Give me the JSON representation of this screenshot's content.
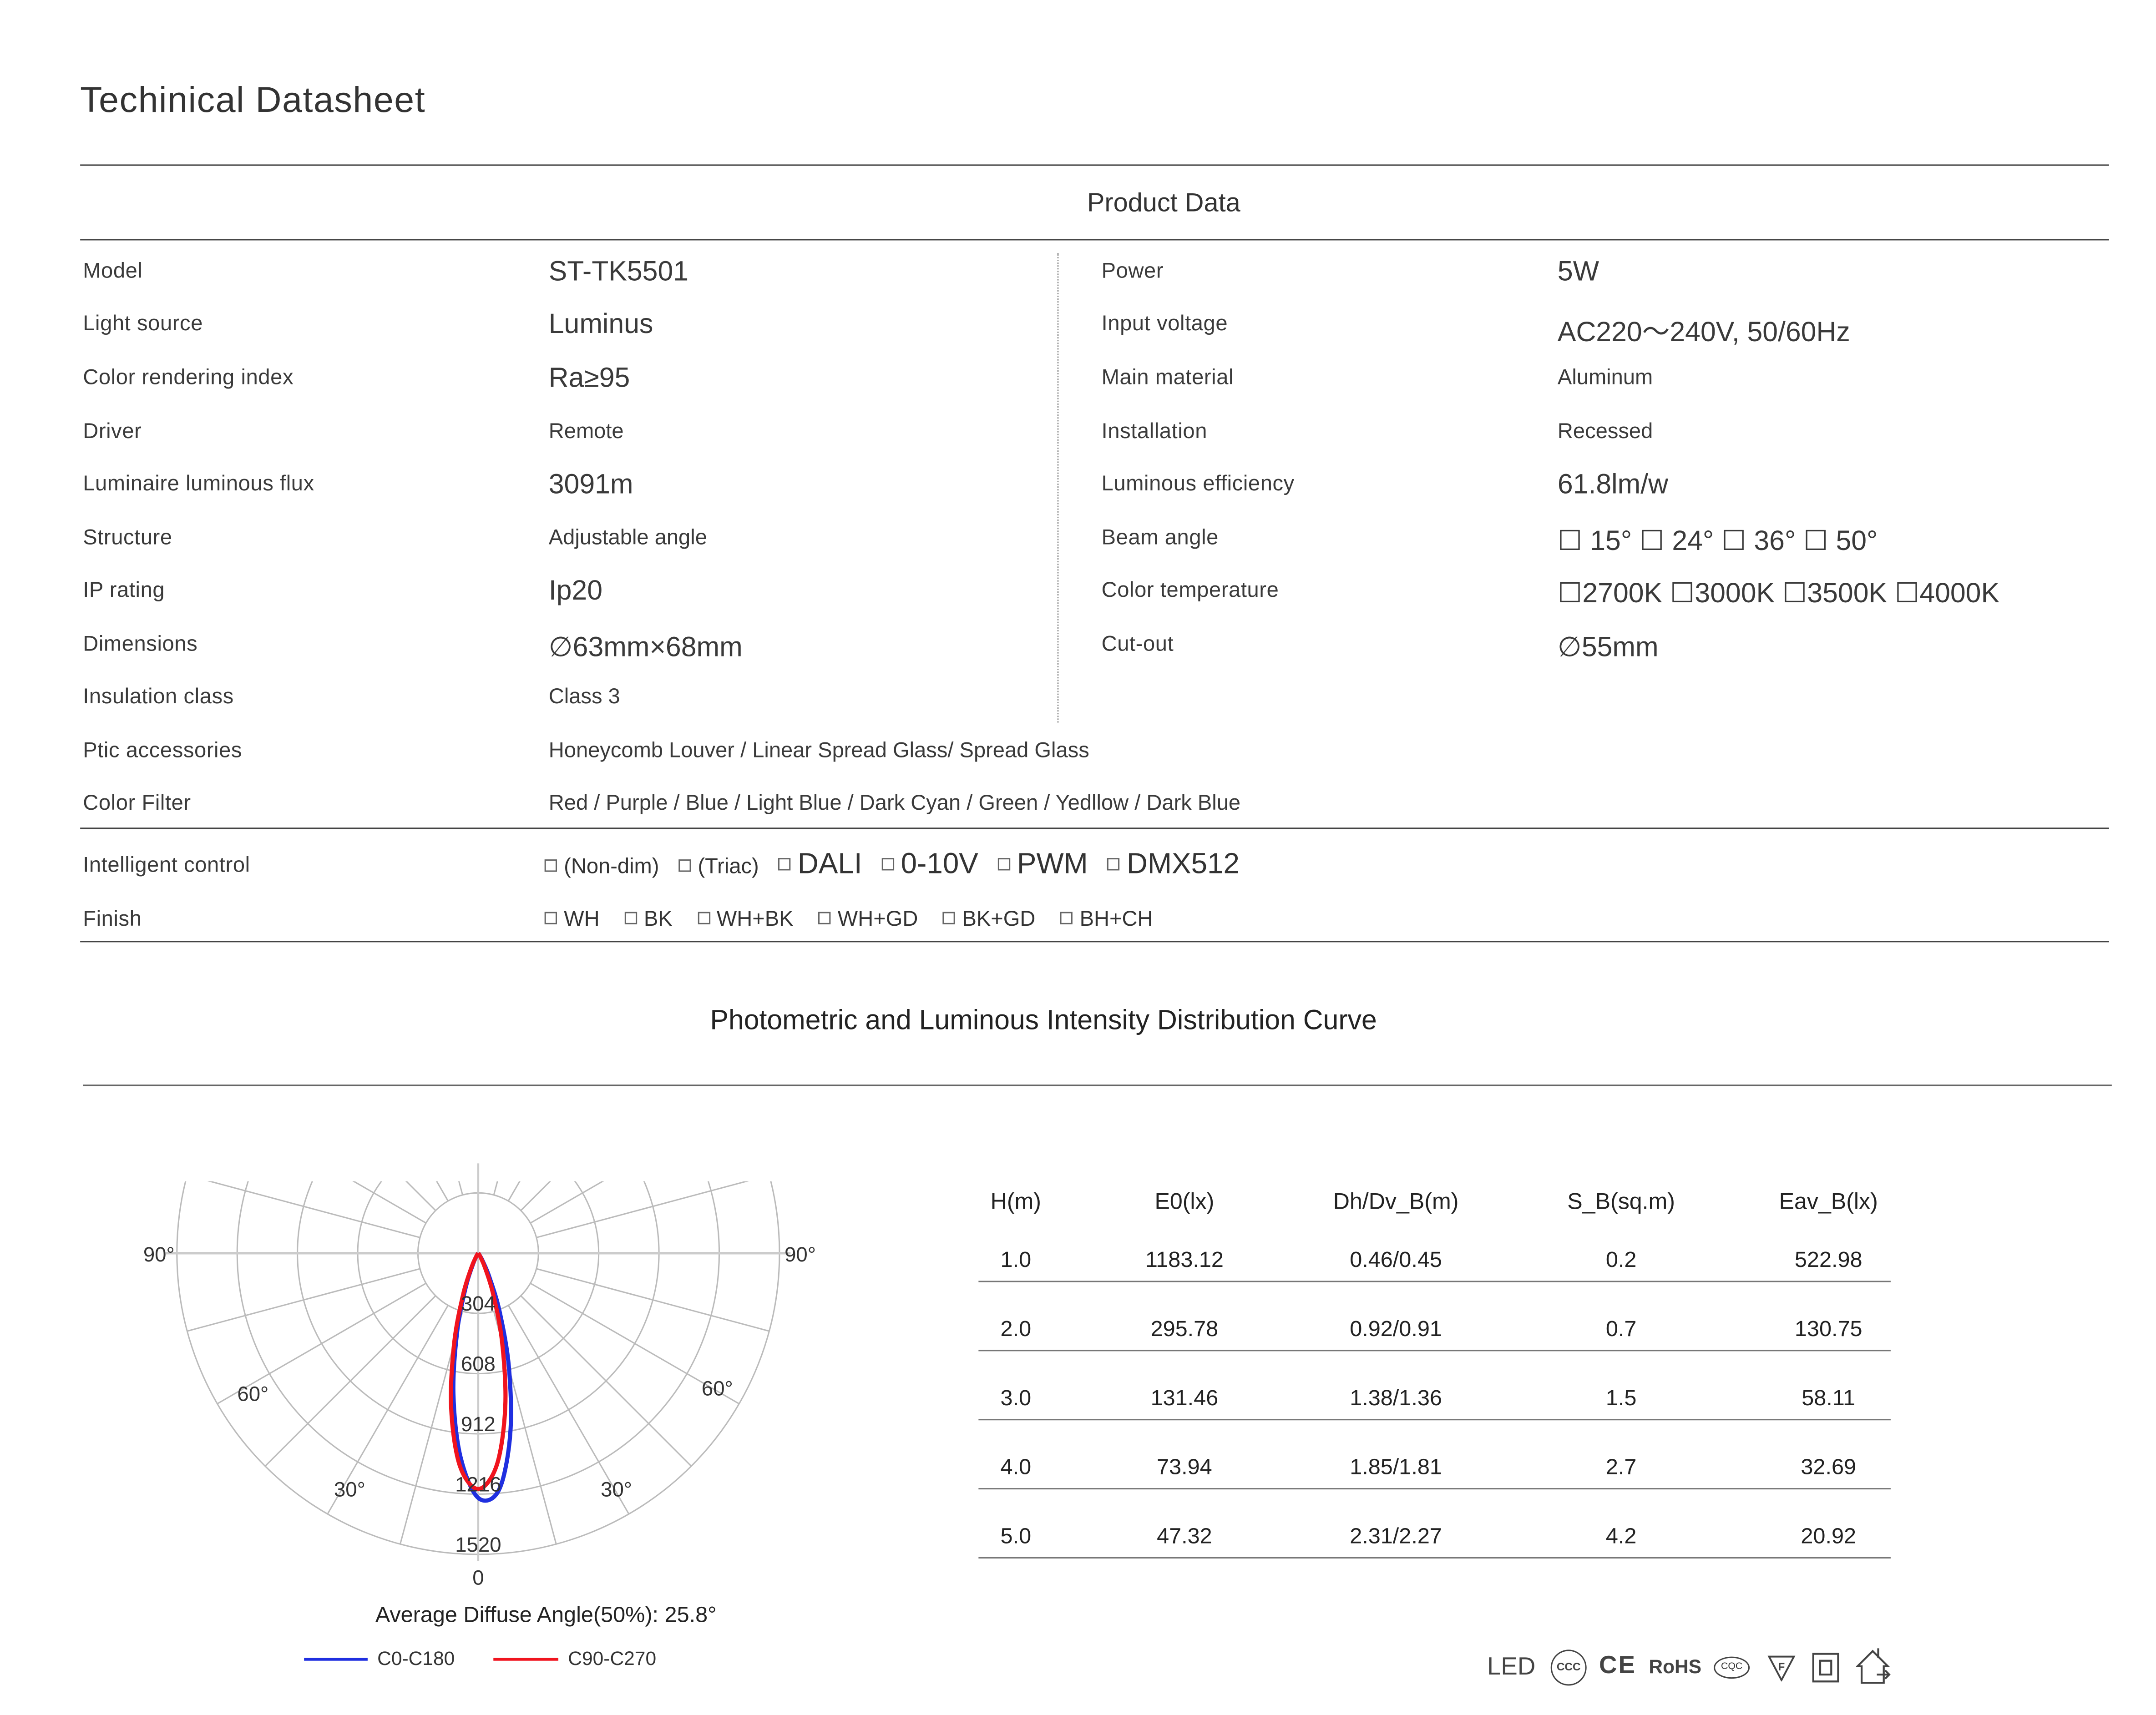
{
  "title": "Techinical Datasheet",
  "product_data": {
    "heading": "Product Data",
    "left": [
      {
        "label": "Model",
        "value": "ST-TK5501"
      },
      {
        "label": "Light source",
        "value": "Luminus"
      },
      {
        "label": "Color rendering index",
        "value": "Ra≥95"
      },
      {
        "label": "Driver",
        "value": "Remote"
      },
      {
        "label": "Luminaire luminous flux",
        "value": "3091m"
      },
      {
        "label": "Structure",
        "value": "Adjustable angle"
      },
      {
        "label": "IP  rating",
        "value": "Ip20"
      },
      {
        "label": "Dimensions",
        "value": "∅63mm×68mm"
      },
      {
        "label": "Insulation class",
        "value": "Class 3"
      },
      {
        "label": "Ptic accessories",
        "value": "Honeycomb Louver / Linear Spread Glass/   Spread Glass"
      },
      {
        "label": "Color Filter",
        "value": "Red /  Purple  /  Blue /  Light Blue  / Dark Cyan /  Green  / Yedllow  / Dark Blue"
      }
    ],
    "right": [
      {
        "label": "Power",
        "value": "5W"
      },
      {
        "label": "Input voltage",
        "value": "AC220～240V, 50/60Hz"
      },
      {
        "label": "Main material",
        "value": "Aluminum"
      },
      {
        "label": "Installation",
        "value": "Recessed"
      },
      {
        "label": "Luminous efficiency",
        "value": "61.8lm/w"
      },
      {
        "label": "Beam angle",
        "value": "☐ 15°   ☐ 24°   ☐ 36°   ☐ 50°"
      },
      {
        "label": "Color temperature",
        "value": "☐2700K ☐3000K ☐3500K ☐4000K"
      },
      {
        "label": "Cut-out",
        "value": "∅55mm"
      }
    ],
    "intelligent_control": {
      "label": "Intelligent control",
      "options": [
        "(Non-dim)",
        "(Triac)",
        "DALI",
        "0-10V",
        "PWM",
        "DMX512"
      ]
    },
    "finish": {
      "label": "Finish",
      "options": [
        "WH",
        "BK",
        "WH+BK",
        "WH+GD",
        "BK+GD",
        "BH+CH"
      ]
    }
  },
  "photometric": {
    "heading": "Photometric and Luminous Intensity Distribution Curve",
    "caption": "Average Diffuse Angle(50%): 25.8°",
    "table": {
      "headers": [
        "H(m)",
        "E0(lx)",
        "Dh/Dv_B(m)",
        "S_B(sq.m)",
        "Eav_B(lx)"
      ],
      "rows": [
        [
          "1.0",
          "1183.12",
          "0.46/0.45",
          "0.2",
          "522.98"
        ],
        [
          "2.0",
          "295.78",
          "0.92/0.91",
          "0.7",
          "130.75"
        ],
        [
          "3.0",
          "131.46",
          "1.38/1.36",
          "1.5",
          "58.11"
        ],
        [
          "4.0",
          "73.94",
          "1.85/1.81",
          "2.7",
          "32.69"
        ],
        [
          "5.0",
          "47.32",
          "2.31/2.27",
          "4.2",
          "20.92"
        ]
      ]
    }
  },
  "chart_data": {
    "type": "polar",
    "radial_ticks": [
      "304",
      "608",
      "912",
      "1216",
      "1520"
    ],
    "radial_range": [
      0,
      1520
    ],
    "angle_labels": {
      "left": [
        "90°",
        "60°",
        "30°"
      ],
      "right": [
        "90°",
        "60°",
        "30°"
      ],
      "bottom": "0"
    },
    "angles": [
      -40,
      -35,
      -30,
      -25,
      -20,
      -15,
      -10,
      -5,
      0,
      5,
      10,
      15,
      20,
      25,
      30,
      35,
      40
    ],
    "series": [
      {
        "name": "C0-C180",
        "color": "#1f2fe0",
        "values": [
          1,
          4,
          18,
          65,
          185,
          410,
          720,
          1030,
          1235,
          1200,
          930,
          600,
          320,
          135,
          45,
          12,
          2
        ]
      },
      {
        "name": "C90-C270",
        "color": "#f0141e",
        "values": [
          1,
          5,
          24,
          83,
          222,
          467,
          787,
          1074,
          1190,
          1074,
          787,
          467,
          222,
          83,
          24,
          5,
          1
        ]
      }
    ],
    "grid": true,
    "legend": "bottom"
  },
  "certifications": {
    "led_text": "LED",
    "rohs_text": "RoHS",
    "cqc_text": "CQC",
    "ccc_text": "CCC",
    "ce_text": "CE",
    "f_text": "F"
  }
}
